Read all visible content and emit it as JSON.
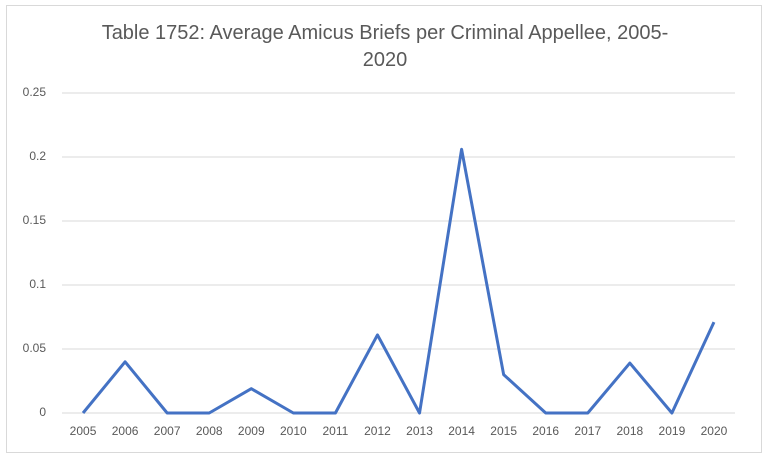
{
  "chart_data": {
    "type": "line",
    "title": "Table 1752: Average Amicus Briefs per Criminal Appellee, 2005-2020",
    "categories": [
      "2005",
      "2006",
      "2007",
      "2008",
      "2009",
      "2010",
      "2011",
      "2012",
      "2013",
      "2014",
      "2015",
      "2016",
      "2017",
      "2018",
      "2019",
      "2020"
    ],
    "values": [
      0,
      0.04,
      0,
      0,
      0.019,
      0,
      0,
      0.061,
      0,
      0.206,
      0.03,
      0,
      0,
      0.039,
      0,
      0.071
    ],
    "color": "#4472c4",
    "ylim": [
      0,
      0.25
    ],
    "yticks": [
      0,
      0.05,
      0.1,
      0.15,
      0.2,
      0.25
    ],
    "grid": true
  }
}
